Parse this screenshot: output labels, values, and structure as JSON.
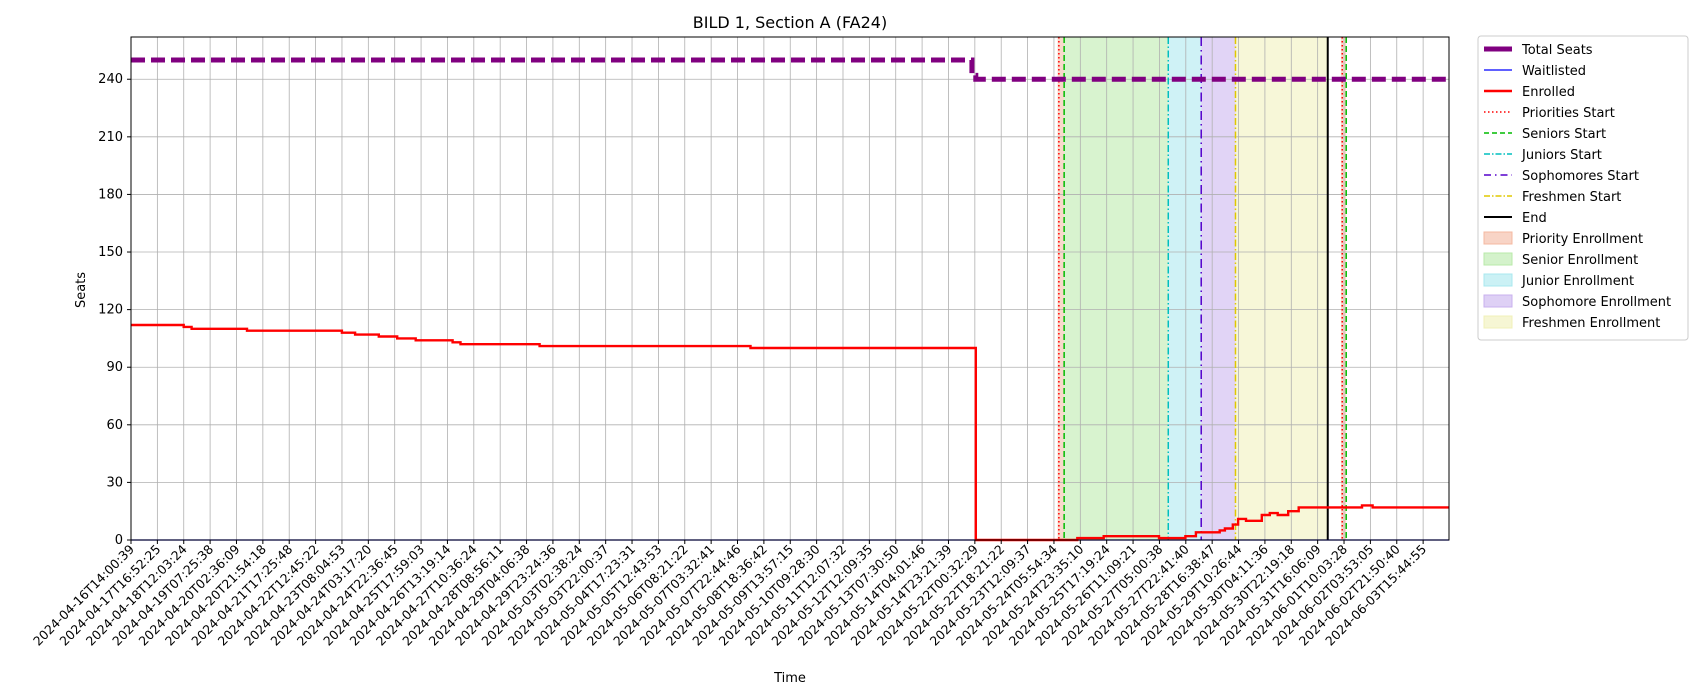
{
  "chart_data": {
    "type": "line",
    "title": "BILD 1, Section A (FA24)",
    "xlabel": "Time",
    "ylabel": "Seats",
    "ylim": [
      0,
      262
    ],
    "y_ticks": [
      0,
      30,
      60,
      90,
      120,
      150,
      180,
      210,
      240
    ],
    "grid": true,
    "legend_position": "outside-right",
    "x_ticks": [
      "2024-04-16T14:00:39",
      "2024-04-17T16:52:25",
      "2024-04-18T12:03:24",
      "2024-04-19T07:25:38",
      "2024-04-20T02:36:09",
      "2024-04-20T21:54:18",
      "2024-04-21T17:25:48",
      "2024-04-22T12:45:22",
      "2024-04-23T08:04:53",
      "2024-04-24T03:17:20",
      "2024-04-24T22:36:45",
      "2024-04-25T17:59:03",
      "2024-04-26T13:19:14",
      "2024-04-27T10:36:24",
      "2024-04-28T08:56:11",
      "2024-04-29T04:06:38",
      "2024-04-29T23:24:36",
      "2024-05-03T02:38:24",
      "2024-05-03T22:00:37",
      "2024-05-04T17:23:31",
      "2024-05-05T12:43:53",
      "2024-05-06T08:21:22",
      "2024-05-07T03:32:41",
      "2024-05-07T22:44:46",
      "2024-05-08T18:36:42",
      "2024-05-09T13:57:15",
      "2024-05-10T09:28:30",
      "2024-05-11T12:07:32",
      "2024-05-12T12:09:35",
      "2024-05-13T07:30:50",
      "2024-05-14T04:01:46",
      "2024-05-14T23:21:39",
      "2024-05-22T00:32:29",
      "2024-05-22T18:21:22",
      "2024-05-23T12:09:37",
      "2024-05-24T05:54:34",
      "2024-05-24T23:35:10",
      "2024-05-25T17:19:24",
      "2024-05-26T11:09:21",
      "2024-05-27T05:00:38",
      "2024-05-27T22:41:40",
      "2024-05-28T16:38:47",
      "2024-05-29T10:26:44",
      "2024-05-30T04:11:36",
      "2024-05-30T22:19:18",
      "2024-05-31T16:06:09",
      "2024-06-01T10:03:28",
      "2024-06-02T03:53:05",
      "2024-06-02T21:50:40",
      "2024-06-03T15:44:55"
    ],
    "x_domain": [
      0,
      50
    ],
    "series": [
      {
        "name": "Total Seats",
        "color": "#800080",
        "style": "dashed-thick",
        "points": [
          [
            0,
            250
          ],
          [
            31.9,
            250
          ],
          [
            31.9,
            242
          ],
          [
            32.05,
            242
          ],
          [
            32.05,
            240
          ],
          [
            50,
            240
          ]
        ]
      },
      {
        "name": "Waitlisted",
        "color": "#0000ff",
        "style": "solid-thin",
        "points": [
          [
            0,
            0
          ],
          [
            50,
            0
          ]
        ]
      },
      {
        "name": "Enrolled",
        "color": "#ff0000",
        "style": "solid",
        "points": [
          [
            0,
            112
          ],
          [
            2,
            112
          ],
          [
            2,
            111
          ],
          [
            2.3,
            111
          ],
          [
            2.3,
            110
          ],
          [
            4.4,
            110
          ],
          [
            4.4,
            109
          ],
          [
            8,
            109
          ],
          [
            8,
            108
          ],
          [
            8.5,
            108
          ],
          [
            8.5,
            107
          ],
          [
            9.4,
            107
          ],
          [
            9.4,
            106
          ],
          [
            10.1,
            106
          ],
          [
            10.1,
            105
          ],
          [
            10.8,
            105
          ],
          [
            10.8,
            104
          ],
          [
            12.2,
            104
          ],
          [
            12.2,
            103
          ],
          [
            12.5,
            103
          ],
          [
            12.5,
            102
          ],
          [
            15.5,
            102
          ],
          [
            15.5,
            101
          ],
          [
            23.5,
            101
          ],
          [
            23.5,
            100
          ],
          [
            32.05,
            100
          ],
          [
            32.05,
            0
          ],
          [
            35.9,
            0
          ],
          [
            35.9,
            1
          ],
          [
            36.9,
            1
          ],
          [
            36.9,
            2
          ],
          [
            39,
            2
          ],
          [
            39,
            1
          ],
          [
            40,
            1
          ],
          [
            40,
            2
          ],
          [
            40.4,
            2
          ],
          [
            40.4,
            4
          ],
          [
            41.3,
            4
          ],
          [
            41.3,
            5
          ],
          [
            41.5,
            5
          ],
          [
            41.5,
            6
          ],
          [
            41.8,
            6
          ],
          [
            41.8,
            8
          ],
          [
            42,
            8
          ],
          [
            42,
            11
          ],
          [
            42.3,
            11
          ],
          [
            42.3,
            10
          ],
          [
            42.9,
            10
          ],
          [
            42.9,
            13
          ],
          [
            43.2,
            13
          ],
          [
            43.2,
            14
          ],
          [
            43.5,
            14
          ],
          [
            43.5,
            13
          ],
          [
            43.9,
            13
          ],
          [
            43.9,
            15
          ],
          [
            44.3,
            15
          ],
          [
            44.3,
            17
          ],
          [
            46.7,
            17
          ],
          [
            46.7,
            18
          ],
          [
            47.1,
            18
          ],
          [
            47.1,
            17
          ],
          [
            50,
            17
          ]
        ]
      }
    ],
    "markers": [
      {
        "name": "Priorities Start",
        "x": 35.2,
        "color": "#ff0000",
        "style": "dotted"
      },
      {
        "name": "Seniors Start",
        "x": 35.4,
        "color": "#00bb00",
        "style": "dashed"
      },
      {
        "name": "Juniors Start",
        "x": 39.35,
        "color": "#00bfbf",
        "style": "dashdot"
      },
      {
        "name": "Sophomores Start",
        "x": 40.6,
        "color": "#5500cc",
        "style": "loose-dashdot"
      },
      {
        "name": "Freshmen Start",
        "x": 41.9,
        "color": "#e0c800",
        "style": "dashdot"
      },
      {
        "name": "End",
        "x": 45.4,
        "color": "#000000",
        "style": "solid"
      },
      {
        "name": "",
        "x": 45.95,
        "color": "#ff0000",
        "style": "dotted"
      },
      {
        "name": "",
        "x": 46.1,
        "color": "#00bb00",
        "style": "dashed"
      }
    ],
    "spans": [
      {
        "name": "Priority Enrollment",
        "x0": 35.15,
        "x1": 35.4,
        "color": "#f4b8a0"
      },
      {
        "name": "Senior Enrollment",
        "x0": 35.4,
        "x1": 39.35,
        "color": "#b8eaa8"
      },
      {
        "name": "Junior Enrollment",
        "x0": 39.35,
        "x1": 40.6,
        "color": "#a8e8ef"
      },
      {
        "name": "Sophomore Enrollment",
        "x0": 40.6,
        "x1": 41.9,
        "color": "#c8b0ee"
      },
      {
        "name": "Freshmen Enrollment",
        "x0": 41.9,
        "x1": 45.4,
        "color": "#f0f0b8"
      },
      {
        "name": "",
        "x0": 45.9,
        "x1": 46.1,
        "color": "#f4b8a0"
      }
    ],
    "legend": [
      {
        "label": "Total Seats",
        "kind": "line",
        "color": "#800080",
        "style": "thick"
      },
      {
        "label": "Waitlisted",
        "kind": "line",
        "color": "#0000ff",
        "style": "thin"
      },
      {
        "label": "Enrolled",
        "kind": "line",
        "color": "#ff0000",
        "style": "medium"
      },
      {
        "label": "Priorities Start",
        "kind": "line",
        "color": "#ff0000",
        "style": "dotted"
      },
      {
        "label": "Seniors Start",
        "kind": "line",
        "color": "#00bb00",
        "style": "dashed"
      },
      {
        "label": "Juniors Start",
        "kind": "line",
        "color": "#00bfbf",
        "style": "dashdot"
      },
      {
        "label": "Sophomores Start",
        "kind": "line",
        "color": "#5500cc",
        "style": "loose-dashdot"
      },
      {
        "label": "Freshmen Start",
        "kind": "line",
        "color": "#e0c800",
        "style": "dashdot"
      },
      {
        "label": "End",
        "kind": "line",
        "color": "#000000",
        "style": "solid"
      },
      {
        "label": "Priority Enrollment",
        "kind": "patch",
        "color": "#f4b8a0"
      },
      {
        "label": "Senior Enrollment",
        "kind": "patch",
        "color": "#b8eaa8"
      },
      {
        "label": "Junior Enrollment",
        "kind": "patch",
        "color": "#a8e8ef"
      },
      {
        "label": "Sophomore Enrollment",
        "kind": "patch",
        "color": "#c8b0ee"
      },
      {
        "label": "Freshmen Enrollment",
        "kind": "patch",
        "color": "#f0f0b8"
      }
    ]
  }
}
